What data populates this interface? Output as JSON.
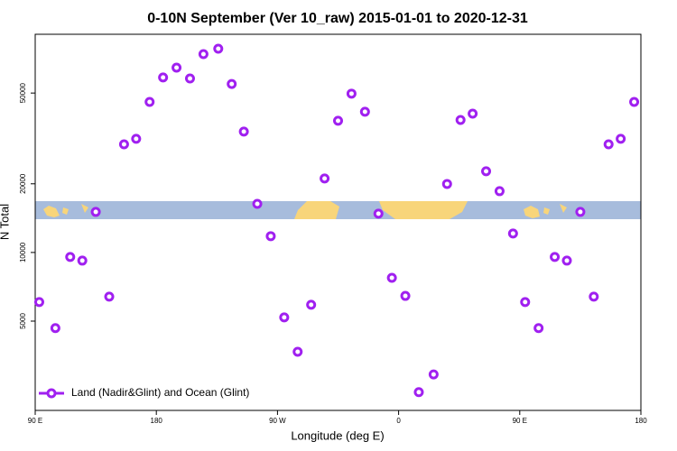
{
  "chart_data": {
    "type": "scatter",
    "title": "0-10N September (Ver 10_raw)   2015-01-01 to 2020-12-31",
    "x_label": "Longitude (deg E)",
    "y_label": "N Total",
    "series": [
      {
        "name": "Land (Nadir&Glint) and Ocean (Glint)",
        "color": "#a020f0",
        "x": [
          93,
          105,
          116,
          125,
          135,
          145,
          156,
          165,
          175,
          185,
          195,
          205,
          215,
          226,
          236,
          245,
          255,
          265,
          275,
          285,
          295,
          305,
          315,
          325,
          335,
          345,
          355,
          365,
          375,
          386,
          396,
          406,
          415,
          425,
          435,
          445,
          454,
          464,
          476,
          485,
          495,
          505,
          516,
          525,
          535
        ],
        "values": [
          6060,
          4660,
          9560,
          9210,
          15060,
          6400,
          29800,
          31500,
          45700,
          58500,
          64600,
          57900,
          74100,
          78200,
          54800,
          33900,
          16340,
          11790,
          5190,
          3670,
          5900,
          21100,
          37800,
          49700,
          41400,
          14790,
          7740,
          6450,
          2440,
          2920,
          19970,
          38100,
          40600,
          22700,
          18570,
          12110,
          6060,
          4660,
          9560,
          9210,
          15060,
          6400,
          29800,
          31500,
          45700
        ]
      }
    ],
    "xlim": [
      90,
      540
    ],
    "xticks": [
      {
        "value": 90,
        "label": "90 E"
      },
      180,
      {
        "value": 270,
        "label": "90 W"
      },
      {
        "value": 360,
        "label": "0"
      },
      {
        "value": 450,
        "label": "90 E"
      },
      {
        "value": 540,
        "label": "180"
      }
    ],
    "ylim": [
      2030,
      90500
    ],
    "ylog": true,
    "yticks": [
      5000,
      10000,
      20000,
      50000
    ],
    "legend": "bottom left"
  }
}
